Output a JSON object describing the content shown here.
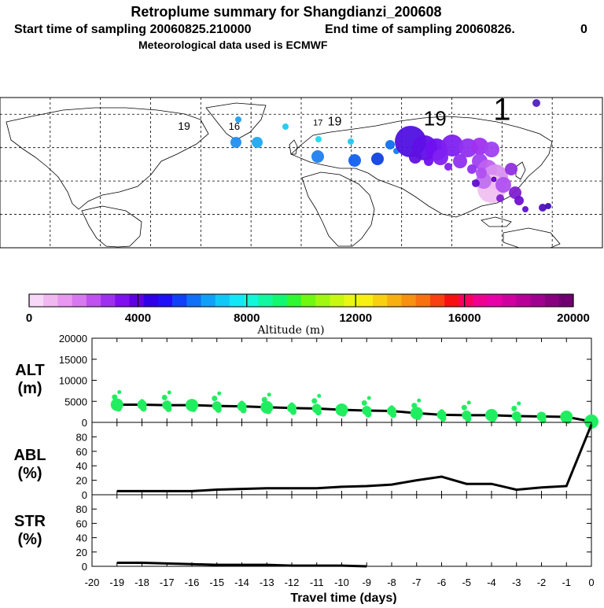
{
  "header": {
    "title": "Retroplume summary for Shangdianzi_200608",
    "start_label": "Start time of sampling 20060825.210000",
    "end_label": "End time of sampling 20060826.",
    "end_suffix": "0",
    "met_label": "Meteorological data used is ECMWF"
  },
  "colorbar": {
    "ticks": [
      "0",
      "4000",
      "8000",
      "12000",
      "16000",
      "20000"
    ],
    "label": "Altitude (m)",
    "colors": [
      "#f8d8f8",
      "#f0b8f0",
      "#e898f0",
      "#d878f0",
      "#c050f0",
      "#a030f0",
      "#8010f0",
      "#6000e0",
      "#3000e8",
      "#2010f8",
      "#1040f8",
      "#1070f8",
      "#10a0f8",
      "#10c8f8",
      "#10e8f8",
      "#10f8d8",
      "#10f8a0",
      "#10f870",
      "#30f830",
      "#70f810",
      "#a0f810",
      "#c8f810",
      "#e8f810",
      "#f8f010",
      "#f8d010",
      "#f8b010",
      "#f89010",
      "#f87010",
      "#f84010",
      "#f81010",
      "#f80060",
      "#f00090",
      "#e800a8",
      "#d000a0",
      "#b80098",
      "#a00090",
      "#880080",
      "#700070"
    ]
  },
  "map": {
    "grid_lat": [
      60,
      30,
      0,
      -30
    ],
    "grid_lon": [
      -150,
      -120,
      -90,
      -60,
      -30,
      0,
      30,
      60,
      90,
      120,
      150
    ],
    "plume_color": "#8a2be2",
    "station_color": "#8000ff",
    "labels": [
      {
        "text": "19",
        "lon": 20,
        "lat": 50,
        "size": 16
      },
      {
        "text": "1",
        "lon": 120,
        "lat": 55,
        "size": 40
      },
      {
        "text": "19",
        "lon": 80,
        "lat": 50,
        "size": 26
      },
      {
        "text": "16",
        "lon": -40,
        "lat": 46,
        "size": 13
      },
      {
        "text": "19",
        "lon": -70,
        "lat": 46,
        "size": 14
      },
      {
        "text": "17",
        "lon": 10,
        "lat": 50,
        "size": 11
      }
    ]
  },
  "panels": {
    "alt": {
      "label1": "ALT",
      "label2": "(m)",
      "ticks": [
        "20000",
        "15000",
        "10000",
        "5000",
        "0"
      ]
    },
    "abl": {
      "label1": "ABL",
      "label2": "(%)",
      "ticks": [
        "80",
        "60",
        "40",
        "20",
        "0"
      ]
    },
    "str": {
      "label1": "STR",
      "label2": "(%)",
      "ticks": [
        "80",
        "60",
        "40",
        "20",
        "0"
      ]
    }
  },
  "xaxis": {
    "title": "Travel time (days)",
    "ticks": [
      "-20",
      "-19",
      "-18",
      "-17",
      "-16",
      "-15",
      "-14",
      "-13",
      "-12",
      "-11",
      "-10",
      "-9",
      "-8",
      "-7",
      "-6",
      "-5",
      "-4",
      "-3",
      "-2",
      "-1",
      "0"
    ]
  },
  "chart_data": [
    {
      "type": "line",
      "title": "ALT",
      "ylabel": "(m)",
      "ylim": [
        0,
        20000
      ],
      "x": [
        -19,
        -18,
        -17,
        -16,
        -15,
        -14,
        -13,
        -12,
        -11,
        -10,
        -9,
        -8,
        -7,
        -6,
        -5,
        -4,
        -3,
        -2,
        -1,
        0
      ],
      "values": [
        4200,
        4200,
        4100,
        4100,
        3900,
        3800,
        3600,
        3400,
        3300,
        3000,
        2800,
        2700,
        2200,
        1800,
        1700,
        1700,
        1500,
        1400,
        1300,
        200
      ],
      "marker_color": "#20ee60"
    },
    {
      "type": "line",
      "title": "ABL",
      "ylabel": "(%)",
      "ylim": [
        0,
        100
      ],
      "x": [
        -19,
        -18,
        -17,
        -16,
        -15,
        -14,
        -13,
        -12,
        -11,
        -10,
        -9,
        -8,
        -7,
        -6,
        -5,
        -4,
        -3,
        -2,
        -1,
        0
      ],
      "values": [
        5,
        5,
        5,
        5,
        7,
        8,
        9,
        9,
        9,
        11,
        12,
        14,
        20,
        25,
        15,
        15,
        7,
        10,
        12,
        97
      ]
    },
    {
      "type": "line",
      "title": "STR",
      "ylabel": "(%)",
      "ylim": [
        0,
        100
      ],
      "x": [
        -19,
        -18,
        -17,
        -16,
        -15,
        -14,
        -13,
        -12,
        -11,
        -10,
        -9
      ],
      "values": [
        5,
        5,
        4,
        3,
        2,
        2,
        2,
        1,
        1,
        1,
        0
      ]
    }
  ]
}
